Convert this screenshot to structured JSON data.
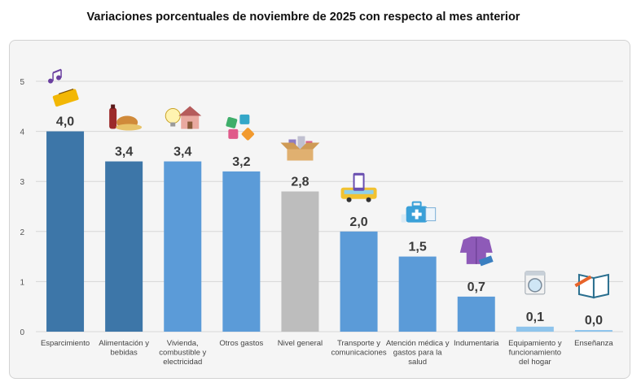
{
  "title": "Variaciones porcentuales de noviembre de 2025 con respecto al mes anterior",
  "colors": {
    "dark_blue": "#3d76a8",
    "light_blue": "#5b9bd8",
    "gray": "#bdbdbd",
    "pale_blue": "#8ec4ec"
  },
  "chart_data": {
    "type": "bar",
    "title": "Variaciones porcentuales de noviembre de 2025 con respecto al mes anterior",
    "xlabel": "",
    "ylabel": "",
    "ylim": [
      0,
      5
    ],
    "yticks": [
      "0",
      "1",
      "2",
      "3",
      "4",
      "5"
    ],
    "grid": true,
    "categories": [
      [
        "Esparcimiento"
      ],
      [
        "Alimentación y",
        "bebidas"
      ],
      [
        "Vivienda,",
        "combustible y",
        "electricidad"
      ],
      [
        "Otros gastos"
      ],
      [
        "Nivel general"
      ],
      [
        "Transporte y",
        "comunicaciones"
      ],
      [
        "Atención médica y",
        "gastos para la",
        "salud"
      ],
      [
        "Indumentaria"
      ],
      [
        "Equipamiento y",
        "funcionamiento",
        "del hogar"
      ],
      [
        "Enseñanza"
      ]
    ],
    "values": [
      4.0,
      3.4,
      3.4,
      3.2,
      2.8,
      2.0,
      1.5,
      0.7,
      0.1,
      0.0
    ],
    "value_labels": [
      "4,0",
      "3,4",
      "3,4",
      "3,2",
      "2,8",
      "2,0",
      "1,5",
      "0,7",
      "0,1",
      "0,0"
    ],
    "bar_colors": [
      "#3d76a8",
      "#3d76a8",
      "#5b9bd8",
      "#5b9bd8",
      "#bdbdbd",
      "#5b9bd8",
      "#5b9bd8",
      "#5b9bd8",
      "#8ec4ec",
      "#8ec4ec"
    ],
    "icons": [
      "ticket-music-icon",
      "food-drink-icon",
      "house-bulb-icon",
      "puzzle-icon",
      "box-products-icon",
      "bus-phone-icon",
      "medical-kit-icon",
      "clothes-icon",
      "washing-machine-icon",
      "book-pencil-icon"
    ]
  }
}
